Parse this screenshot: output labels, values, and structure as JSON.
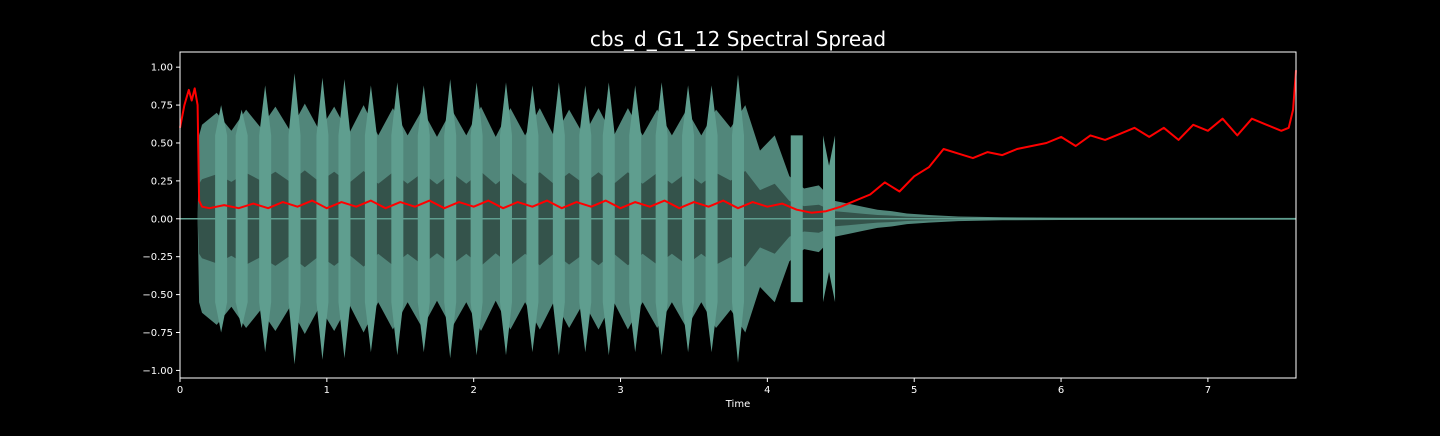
{
  "colors": {
    "background": "#000000",
    "axes_frame": "#ffffff",
    "text": "#ffffff",
    "waveform_outer": "#5f9e8f",
    "waveform_inner": "#34534b",
    "spread_line": "#ff0000"
  },
  "chart_data": {
    "type": "line",
    "title": "cbs_d_G1_12 Spectral Spread",
    "xlabel": "Time",
    "ylabel": "",
    "xlim": [
      0,
      7.6
    ],
    "ylim": [
      -1.05,
      1.1
    ],
    "x_ticks": [
      0,
      1,
      2,
      3,
      4,
      5,
      6,
      7
    ],
    "x_tick_labels": [
      "0",
      "1",
      "2",
      "3",
      "4",
      "5",
      "6",
      "7"
    ],
    "y_ticks": [
      1.0,
      0.75,
      0.5,
      0.25,
      0.0,
      -0.25,
      -0.5,
      -0.75,
      -1.0
    ],
    "y_tick_labels": [
      "1.00",
      "0.75",
      "0.50",
      "0.25",
      "0.00",
      "−0.25",
      "−0.50",
      "−0.75",
      "−1.00"
    ],
    "grid": false,
    "legend": "none",
    "series": [
      {
        "kind": "waveform-envelope",
        "x": [
          0,
          0.12,
          0.13,
          0.15,
          0.25,
          0.35,
          0.45,
          0.55,
          0.65,
          0.75,
          0.85,
          0.95,
          1.05,
          1.15,
          1.25,
          1.35,
          1.45,
          1.55,
          1.65,
          1.75,
          1.85,
          1.95,
          2.05,
          2.15,
          2.25,
          2.35,
          2.45,
          2.55,
          2.65,
          2.75,
          2.85,
          2.95,
          3.05,
          3.15,
          3.25,
          3.35,
          3.45,
          3.55,
          3.65,
          3.75,
          3.85,
          3.95,
          4.05,
          4.15,
          4.25,
          4.35,
          4.45,
          4.55,
          4.65,
          4.75,
          4.85,
          4.95,
          5.1,
          5.3,
          5.6,
          6.0,
          7.6
        ],
        "values": [
          0.0,
          0.0,
          0.55,
          0.62,
          0.7,
          0.58,
          0.72,
          0.6,
          0.74,
          0.58,
          0.76,
          0.58,
          0.74,
          0.56,
          0.75,
          0.55,
          0.73,
          0.55,
          0.72,
          0.54,
          0.72,
          0.55,
          0.74,
          0.54,
          0.73,
          0.55,
          0.73,
          0.54,
          0.72,
          0.55,
          0.73,
          0.54,
          0.73,
          0.55,
          0.72,
          0.55,
          0.72,
          0.55,
          0.72,
          0.6,
          0.75,
          0.45,
          0.55,
          0.28,
          0.2,
          0.22,
          0.12,
          0.1,
          0.08,
          0.06,
          0.05,
          0.035,
          0.025,
          0.015,
          0.01,
          0.008,
          0.006
        ]
      },
      {
        "kind": "waveform-peaks",
        "x": [
          0.28,
          0.42,
          0.58,
          0.78,
          0.97,
          1.12,
          1.3,
          1.48,
          1.66,
          1.84,
          2.02,
          2.22,
          2.4,
          2.58,
          2.76,
          2.92,
          3.1,
          3.28,
          3.46,
          3.62,
          3.8,
          4.2,
          4.42
        ],
        "values": [
          0.75,
          0.72,
          0.88,
          0.96,
          0.93,
          0.92,
          0.88,
          0.9,
          0.88,
          0.92,
          0.9,
          0.9,
          0.88,
          0.9,
          0.88,
          0.9,
          0.88,
          0.9,
          0.88,
          0.88,
          0.95,
          0.55,
          0.35
        ]
      },
      {
        "name": "Spectral Spread",
        "kind": "line",
        "x": [
          0.0,
          0.03,
          0.06,
          0.08,
          0.1,
          0.12,
          0.13,
          0.15,
          0.2,
          0.3,
          0.4,
          0.5,
          0.6,
          0.7,
          0.8,
          0.9,
          1.0,
          1.1,
          1.2,
          1.3,
          1.4,
          1.5,
          1.6,
          1.7,
          1.8,
          1.9,
          2.0,
          2.1,
          2.2,
          2.3,
          2.4,
          2.5,
          2.6,
          2.7,
          2.8,
          2.9,
          3.0,
          3.1,
          3.2,
          3.3,
          3.4,
          3.5,
          3.6,
          3.7,
          3.8,
          3.9,
          4.0,
          4.1,
          4.2,
          4.3,
          4.4,
          4.5,
          4.6,
          4.7,
          4.8,
          4.9,
          5.0,
          5.1,
          5.2,
          5.3,
          5.4,
          5.5,
          5.6,
          5.7,
          5.8,
          5.9,
          6.0,
          6.1,
          6.2,
          6.3,
          6.4,
          6.5,
          6.6,
          6.7,
          6.8,
          6.9,
          7.0,
          7.1,
          7.2,
          7.3,
          7.4,
          7.5,
          7.55,
          7.58,
          7.6
        ],
        "values": [
          0.6,
          0.75,
          0.85,
          0.78,
          0.86,
          0.75,
          0.12,
          0.08,
          0.07,
          0.09,
          0.07,
          0.1,
          0.07,
          0.11,
          0.08,
          0.12,
          0.07,
          0.11,
          0.08,
          0.12,
          0.07,
          0.11,
          0.08,
          0.12,
          0.07,
          0.11,
          0.08,
          0.12,
          0.07,
          0.11,
          0.08,
          0.12,
          0.07,
          0.11,
          0.08,
          0.12,
          0.07,
          0.11,
          0.08,
          0.12,
          0.07,
          0.11,
          0.08,
          0.12,
          0.07,
          0.11,
          0.08,
          0.1,
          0.06,
          0.04,
          0.05,
          0.08,
          0.12,
          0.16,
          0.24,
          0.18,
          0.28,
          0.34,
          0.46,
          0.43,
          0.4,
          0.44,
          0.42,
          0.46,
          0.48,
          0.5,
          0.54,
          0.48,
          0.55,
          0.52,
          0.56,
          0.6,
          0.54,
          0.6,
          0.52,
          0.62,
          0.58,
          0.66,
          0.55,
          0.66,
          0.62,
          0.58,
          0.6,
          0.72,
          0.98
        ]
      }
    ]
  }
}
